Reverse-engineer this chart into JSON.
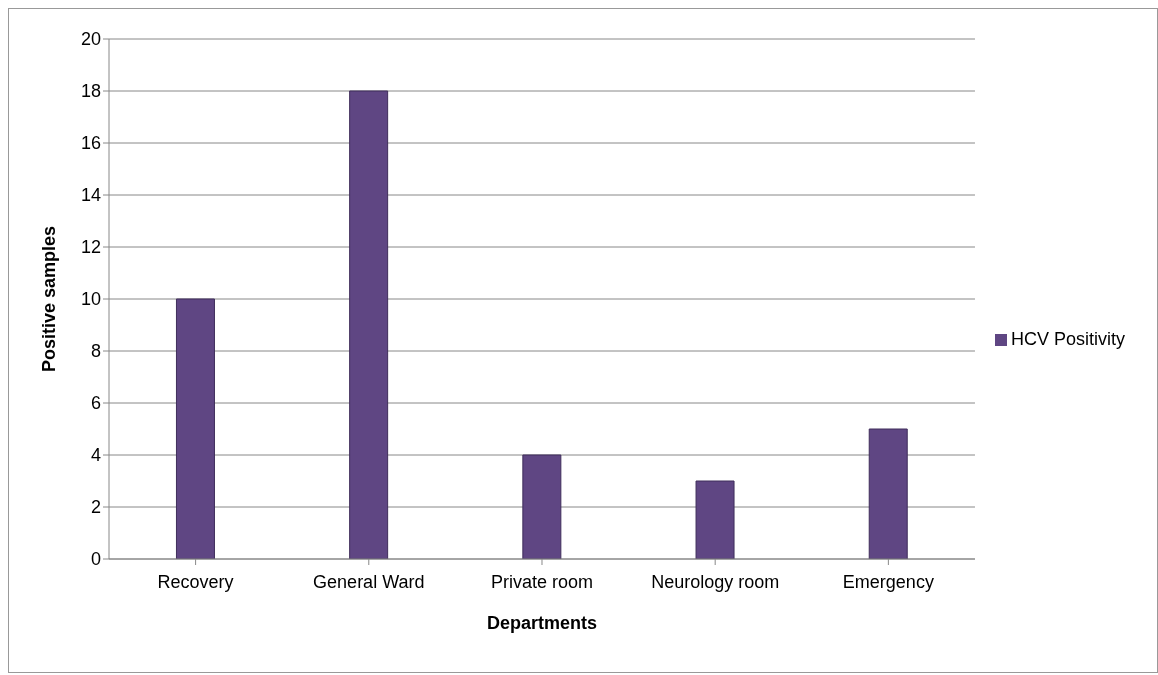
{
  "chart_data": {
    "type": "bar",
    "xlabel": "Departments",
    "ylabel": "Positive samples",
    "categories": [
      "Recovery",
      "General Ward",
      "Private room",
      "Neurology room",
      "Emergency"
    ],
    "series": [
      {
        "name": "HCV Positivity",
        "color": "#5f4683",
        "values": [
          10,
          18,
          4,
          3,
          5
        ]
      }
    ],
    "ylim": [
      0,
      20
    ],
    "yticks": [
      0,
      2,
      4,
      6,
      8,
      10,
      12,
      14,
      16,
      18,
      20
    ],
    "grid": "y",
    "legend": "right"
  }
}
